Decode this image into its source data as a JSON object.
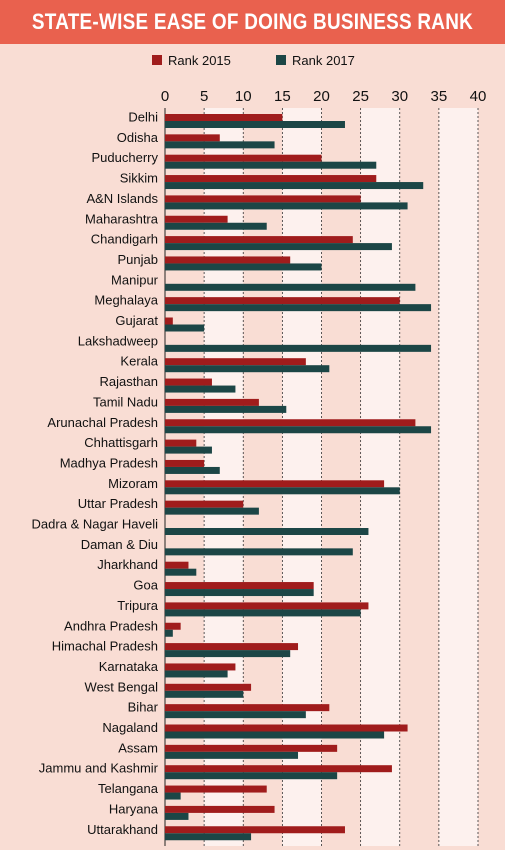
{
  "title": "STATE-WISE EASE OF DOING BUSINESS RANK",
  "colors": {
    "header_bg": "#e9614e",
    "page_bg": "#f9ddd4",
    "band_light": "#fdf1ee",
    "series_2015": "#a01c1c",
    "series_2017": "#1c4646"
  },
  "chart_data": {
    "type": "bar",
    "orientation": "horizontal",
    "title": "STATE-WISE EASE OF DOING BUSINESS RANK",
    "xlim": [
      0,
      40
    ],
    "xticks": [
      0,
      5,
      10,
      15,
      20,
      25,
      30,
      35,
      40
    ],
    "grid": true,
    "legend_position": "top",
    "categories": [
      "Delhi",
      "Odisha",
      "Puducherry",
      "Sikkim",
      "A&N Islands",
      "Maharashtra",
      "Chandigarh",
      "Punjab",
      "Manipur",
      "Meghalaya",
      "Gujarat",
      "Lakshadweep",
      "Kerala",
      "Rajasthan",
      "Tamil Nadu",
      "Arunachal Pradesh",
      "Chhattisgarh",
      "Madhya Pradesh",
      "Mizoram",
      "Uttar Pradesh",
      "Dadra & Nagar Haveli",
      "Daman & Diu",
      "Jharkhand",
      "Goa",
      "Tripura",
      "Andhra Pradesh",
      "Himachal Pradesh",
      "Karnataka",
      "West Bengal",
      "Bihar",
      "Nagaland",
      "Assam",
      "Jammu and Kashmir",
      "Telangana",
      "Haryana",
      "Uttarakhand"
    ],
    "series": [
      {
        "name": "Rank 2015",
        "values": [
          15,
          7,
          20,
          27,
          25,
          8,
          24,
          16,
          null,
          30,
          1,
          null,
          18,
          6,
          12,
          32,
          4,
          5,
          28,
          10,
          null,
          null,
          3,
          19,
          26,
          2,
          17,
          9,
          11,
          21,
          31,
          22,
          29,
          13,
          14,
          23
        ]
      },
      {
        "name": "Rank 2017",
        "values": [
          23,
          14,
          27,
          33,
          31,
          13,
          29,
          20,
          32,
          34,
          5,
          34,
          21,
          9,
          15.5,
          34,
          6,
          7,
          30,
          12,
          26,
          24,
          4,
          19,
          25,
          1,
          16,
          8,
          10,
          18,
          28,
          17,
          22,
          2,
          3,
          11
        ]
      }
    ]
  }
}
